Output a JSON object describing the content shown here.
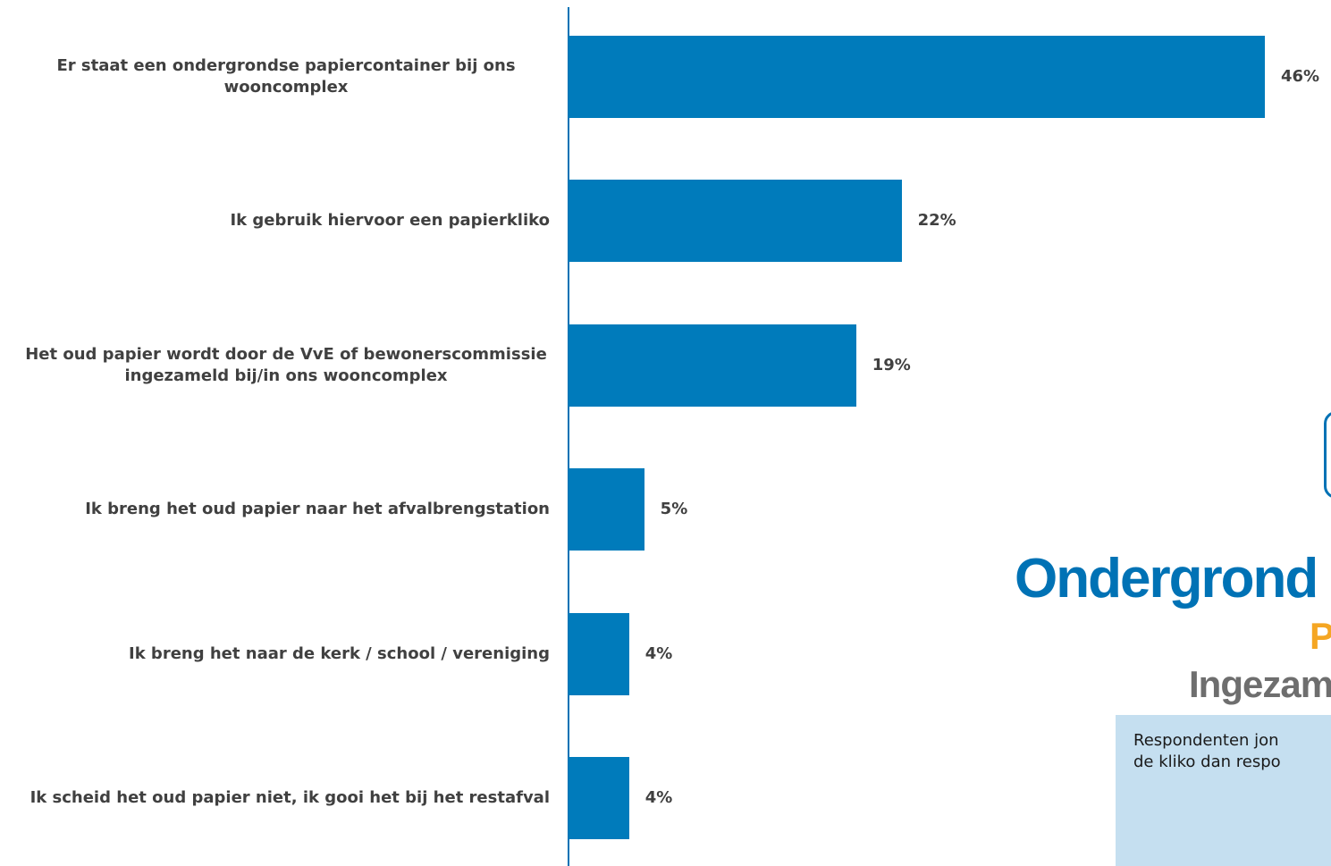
{
  "chart_data": {
    "type": "bar",
    "orientation": "horizontal",
    "color": "#007bbb",
    "categories": [
      "Er staat een ondergrondse papiercontainer bij ons wooncomplex",
      "Ik gebruik hiervoor een papierkliko",
      "Het oud papier wordt door de VvE of bewonerscommissie ingezameld bij/in ons wooncomplex",
      "Ik breng het oud papier naar het afvalbrengstation",
      "Ik breng het naar de kerk / school / vereniging",
      "Ik scheid het oud papier niet, ik gooi het bij het restafval"
    ],
    "values": [
      46,
      22,
      19,
      5,
      4,
      4
    ],
    "value_labels": [
      "46%",
      "22%",
      "19%",
      "5%",
      "4%",
      "4%"
    ]
  },
  "overlay": {
    "heading": "Ondergrond",
    "subheading": "P",
    "subtitle": "Ingezam",
    "note_lines": [
      "Respondenten jon",
      "de kliko dan respo"
    ]
  }
}
